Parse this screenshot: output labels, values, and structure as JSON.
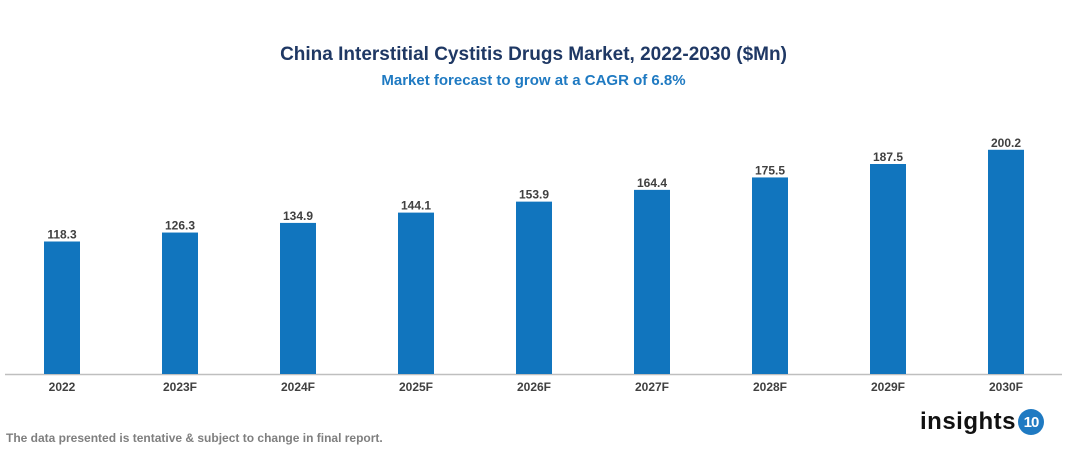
{
  "chart_data": {
    "type": "bar",
    "title": "China Interstitial Cystitis Drugs Market, 2022-2030 ($Mn)",
    "subtitle": "Market forecast to grow at a CAGR of 6.8%",
    "categories": [
      "2022",
      "2023F",
      "2024F",
      "2025F",
      "2026F",
      "2027F",
      "2028F",
      "2029F",
      "2030F"
    ],
    "values": [
      118.3,
      126.3,
      134.9,
      144.1,
      153.9,
      164.4,
      175.5,
      187.5,
      200.2
    ],
    "xlabel": "",
    "ylabel": "",
    "ylim": [
      0,
      210
    ],
    "grid": false,
    "legend": "none",
    "bar_color": "#1175be"
  },
  "footnote": "The data presented is tentative & subject to change in final report.",
  "logo": {
    "text": "insights",
    "badge": "10"
  }
}
